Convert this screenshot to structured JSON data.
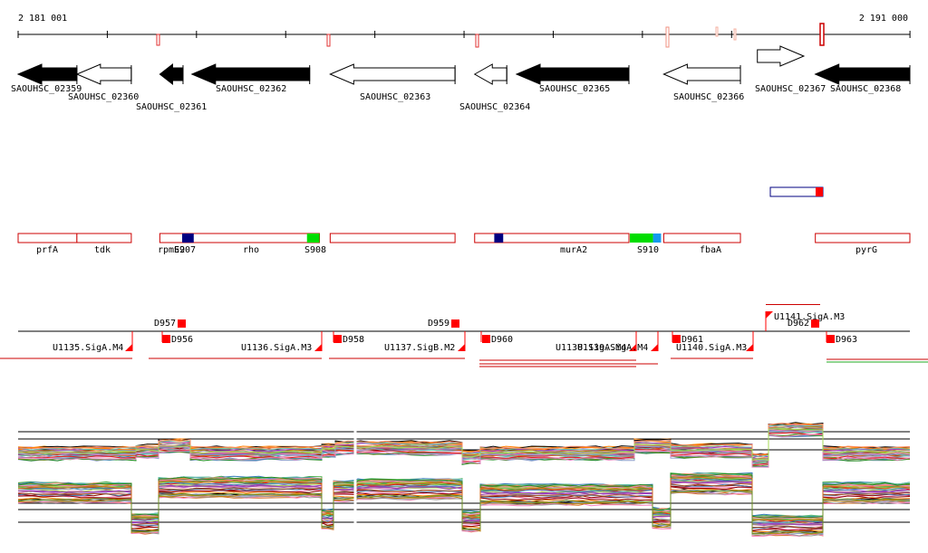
{
  "ruler": {
    "start_label": "2 181 001",
    "end_label": "2 191 000",
    "start": 2181001,
    "end": 2191000
  },
  "colors": {
    "feature_outline": "#cc0000",
    "feature_fill_red": "#ff0000",
    "feature_dark_blue": "#000080",
    "feature_green": "#00dd00",
    "feature_light_blue": "#1199ee",
    "gene_fill": "#000000"
  },
  "genes": [
    {
      "name": "SAOUHSC_02359",
      "start": 2181001,
      "end": 2181660,
      "strand": "-",
      "fill": "black"
    },
    {
      "name": "SAOUHSC_02360",
      "start": 2181660,
      "end": 2182270,
      "strand": "-",
      "fill": "white"
    },
    {
      "name": "SAOUHSC_02361",
      "start": 2182590,
      "end": 2182850,
      "strand": "-",
      "fill": "black"
    },
    {
      "name": "SAOUHSC_02362",
      "start": 2182950,
      "end": 2184270,
      "strand": "-",
      "fill": "black"
    },
    {
      "name": "SAOUHSC_02363",
      "start": 2184500,
      "end": 2185900,
      "strand": "-",
      "fill": "white"
    },
    {
      "name": "SAOUHSC_02364",
      "start": 2186120,
      "end": 2186480,
      "strand": "-",
      "fill": "white"
    },
    {
      "name": "SAOUHSC_02365",
      "start": 2186590,
      "end": 2187850,
      "strand": "-",
      "fill": "black"
    },
    {
      "name": "SAOUHSC_02366",
      "start": 2188240,
      "end": 2189100,
      "strand": "-",
      "fill": "white"
    },
    {
      "name": "SAOUHSC_02367",
      "start": 2189290,
      "end": 2189810,
      "strand": "+",
      "fill": "white"
    },
    {
      "name": "SAOUHSC_02368",
      "start": 2189940,
      "end": 2191000,
      "strand": "-",
      "fill": "black"
    }
  ],
  "operons": [
    {
      "name": "prfA",
      "start": 2181001,
      "end": 2181660
    },
    {
      "name": "tdk",
      "start": 2181660,
      "end": 2182270
    },
    {
      "name": "rpmE2",
      "start": 2182590,
      "end": 2182850
    },
    {
      "name": "rho",
      "start": 2182850,
      "end": 2184380
    },
    {
      "name": "",
      "start": 2184500,
      "end": 2185900
    },
    {
      "name": "murA2",
      "start": 2186120,
      "end": 2187850
    },
    {
      "name": "fbaA",
      "start": 2188240,
      "end": 2189100
    },
    {
      "name": "pyrG",
      "start": 2189940,
      "end": 2191000
    }
  ],
  "sites": [
    {
      "name": "S907",
      "start": 2182840,
      "end": 2182970,
      "color": "dark_blue"
    },
    {
      "name": "S908",
      "start": 2184240,
      "end": 2184380,
      "color": "green"
    },
    {
      "name": "",
      "start": 2186340,
      "end": 2186440,
      "color": "dark_blue"
    },
    {
      "name": "S910",
      "start": 2187860,
      "end": 2188120,
      "color": "green"
    },
    {
      "name": "",
      "start": 2188120,
      "end": 2188210,
      "color": "light_blue"
    }
  ],
  "promoters": [
    {
      "name": "U1135.SigA.M4"
    },
    {
      "name": "U1136.SigA.M3"
    },
    {
      "name": "U1137.SigB.M2"
    },
    {
      "name": "U1138.SigA.M4"
    },
    {
      "name": "U1139.SigA.M4"
    },
    {
      "name": "U1140.SigA.M3"
    },
    {
      "name": "U1141.SigA.M3"
    }
  ],
  "terminators": [
    {
      "name": "D956"
    },
    {
      "name": "D957"
    },
    {
      "name": "D958"
    },
    {
      "name": "D959"
    },
    {
      "name": "D960"
    },
    {
      "name": "D961"
    },
    {
      "name": "D962"
    },
    {
      "name": "D963"
    }
  ]
}
